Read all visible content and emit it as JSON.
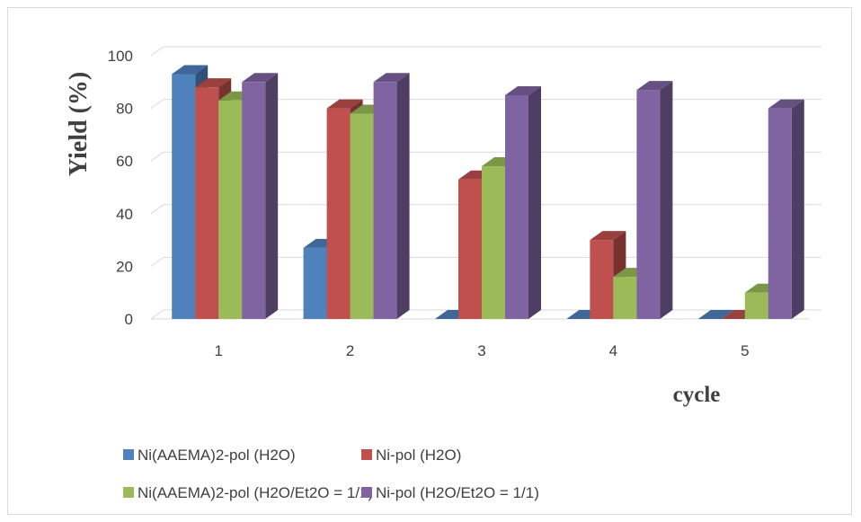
{
  "chart_data": {
    "type": "bar",
    "style": "3d-clustered-column",
    "categories": [
      "1",
      "2",
      "3",
      "4",
      "5"
    ],
    "series": [
      {
        "name": "Ni(AAEMA)2-pol (H2O)",
        "values": [
          93,
          27,
          0,
          0,
          0
        ],
        "color": "#4f81bd"
      },
      {
        "name": "Ni-pol (H2O)",
        "values": [
          88,
          80,
          53,
          30,
          0
        ],
        "color": "#c0504d"
      },
      {
        "name": "Ni(AAEMA)2-pol (H2O/Et2O = 1/1)",
        "values": [
          83,
          78,
          58,
          16,
          10
        ],
        "color": "#9bbb59"
      },
      {
        "name": "Ni-pol (H2O/Et2O = 1/1)",
        "values": [
          90,
          90,
          85,
          87,
          80
        ],
        "color": "#8064a2"
      }
    ],
    "title": "",
    "xlabel": "cycle",
    "ylabel": "Yield (%)",
    "ylim": [
      0,
      100
    ],
    "yticks": [
      "0",
      "20",
      "40",
      "60",
      "80",
      "100"
    ],
    "grid": true,
    "legend_position": "bottom"
  }
}
